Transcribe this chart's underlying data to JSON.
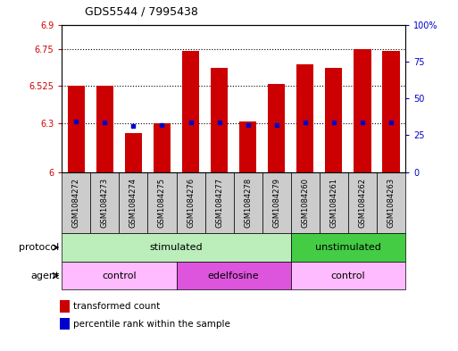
{
  "title": "GDS5544 / 7995438",
  "samples": [
    "GSM1084272",
    "GSM1084273",
    "GSM1084274",
    "GSM1084275",
    "GSM1084276",
    "GSM1084277",
    "GSM1084278",
    "GSM1084279",
    "GSM1084260",
    "GSM1084261",
    "GSM1084262",
    "GSM1084263"
  ],
  "red_values": [
    6.525,
    6.525,
    6.24,
    6.295,
    6.74,
    6.635,
    6.31,
    6.535,
    6.66,
    6.635,
    6.75,
    6.74
  ],
  "blue_values": [
    6.31,
    6.302,
    6.283,
    6.285,
    6.305,
    6.302,
    6.285,
    6.285,
    6.302,
    6.302,
    6.302,
    6.305
  ],
  "ylim_left": [
    6.0,
    6.9
  ],
  "yticks_left": [
    6.0,
    6.3,
    6.525,
    6.75,
    6.9
  ],
  "ytick_labels_left": [
    "6",
    "6.3",
    "6.525",
    "6.75",
    "6.9"
  ],
  "yticks_right": [
    0,
    25,
    50,
    75,
    100
  ],
  "ytick_labels_right": [
    "0",
    "25",
    "50",
    "75",
    "100%"
  ],
  "hlines": [
    6.3,
    6.525,
    6.75
  ],
  "bar_bottom": 6.0,
  "bar_width": 0.6,
  "red_color": "#cc0000",
  "blue_color": "#0000cc",
  "protocol_groups": [
    {
      "label": "stimulated",
      "start": 0,
      "end": 8,
      "color": "#bbeebb"
    },
    {
      "label": "unstimulated",
      "start": 8,
      "end": 12,
      "color": "#44cc44"
    }
  ],
  "agent_groups": [
    {
      "label": "control",
      "start": 0,
      "end": 4,
      "color": "#ffbbff"
    },
    {
      "label": "edelfosine",
      "start": 4,
      "end": 8,
      "color": "#dd55dd"
    },
    {
      "label": "control",
      "start": 8,
      "end": 12,
      "color": "#ffbbff"
    }
  ],
  "legend_red_label": "transformed count",
  "legend_blue_label": "percentile rank within the sample",
  "protocol_label": "protocol",
  "agent_label": "agent",
  "sample_cell_color": "#cccccc",
  "background_color": "#ffffff"
}
